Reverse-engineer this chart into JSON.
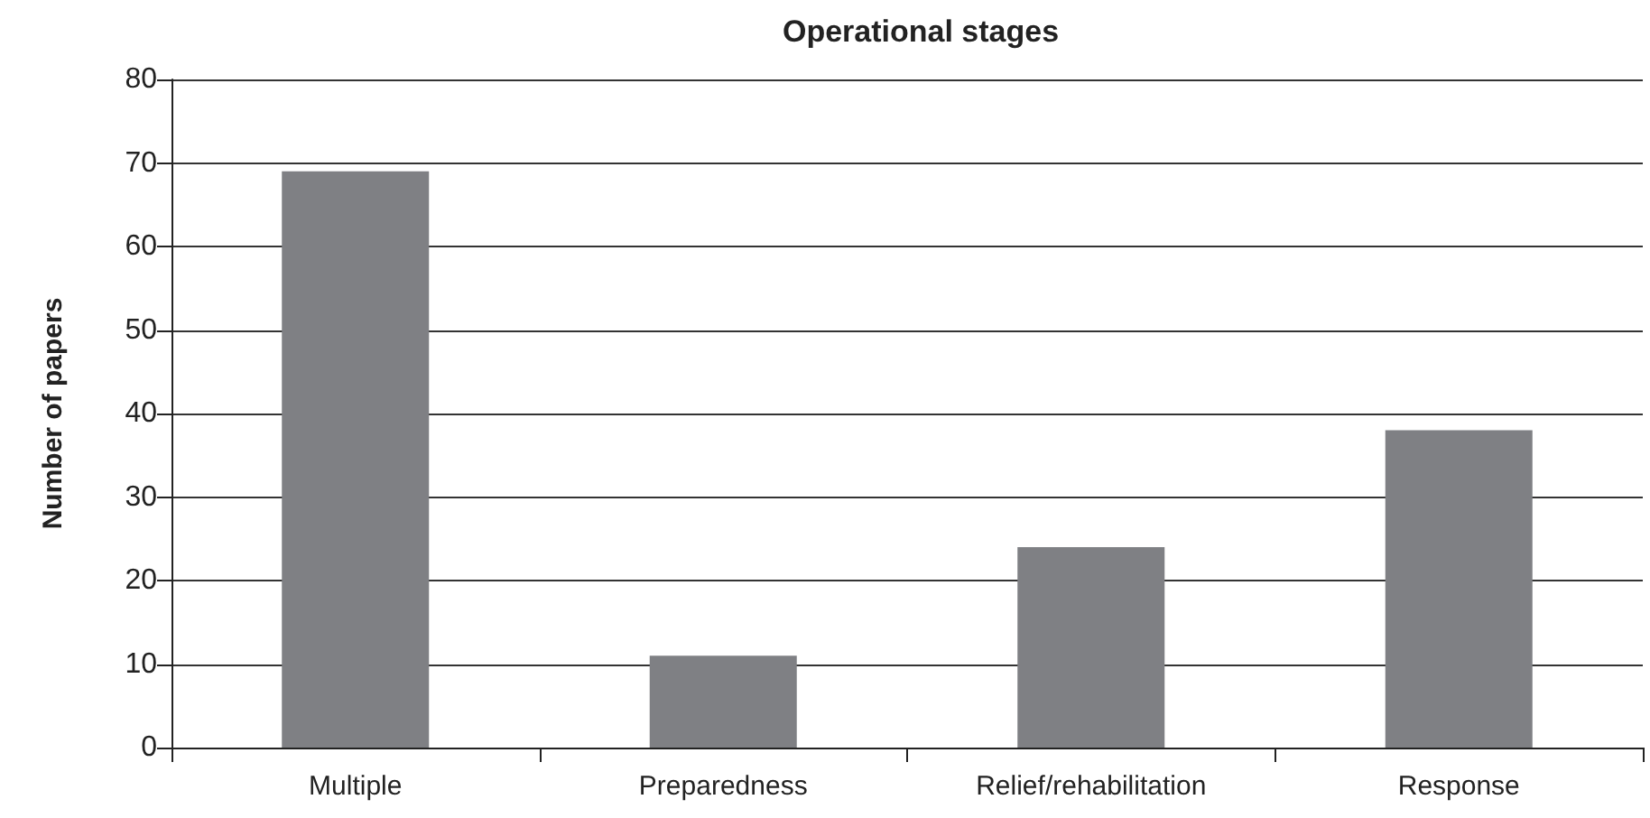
{
  "chart_data": {
    "type": "bar",
    "title": "Operational stages",
    "ylabel": "Number of papers",
    "categories": [
      "Multiple",
      "Preparedness",
      "Relief/rehabilitation",
      "Response"
    ],
    "values": [
      69,
      11,
      24,
      38
    ],
    "color": "#7f8084",
    "ylim": [
      0,
      80
    ],
    "yticks": [
      0,
      10,
      20,
      30,
      40,
      50,
      60,
      70,
      80
    ],
    "grid": "y"
  }
}
